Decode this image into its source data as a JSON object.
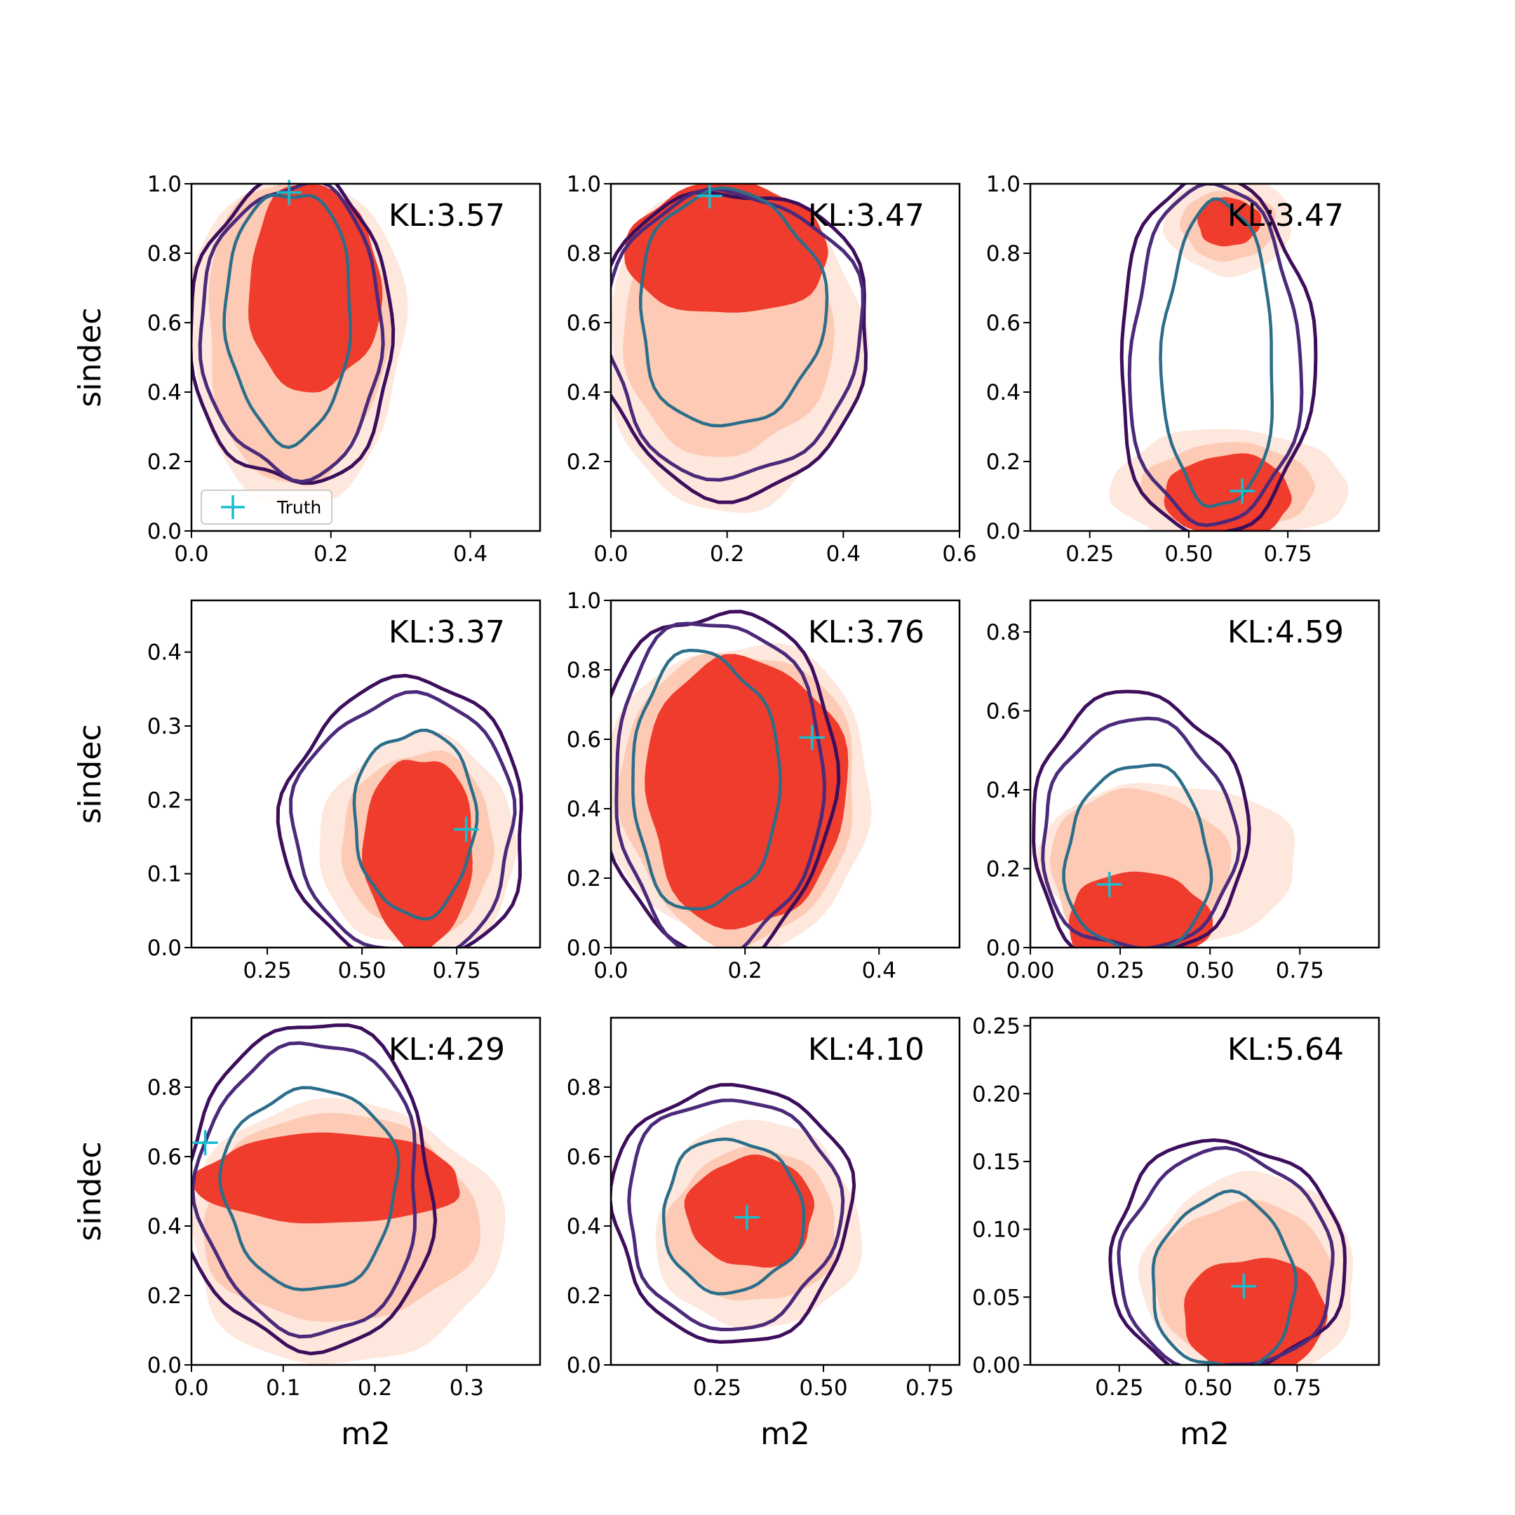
{
  "colors": {
    "fill_levels": [
      "#fee7dc",
      "#fdcab5",
      "#ef3c2d",
      "#d92623"
    ],
    "contour_outer": "#3d0e5c",
    "contour_mid": "#4b2a7a",
    "contour_inner": "#2c6e8a",
    "truth_marker": "#17becf"
  },
  "legend": {
    "label": "Truth",
    "marker": "plus-icon"
  },
  "chart_data": [
    {
      "type": "contour",
      "kl_label": "KL:3.57",
      "xlabel": "",
      "ylabel": "sindec",
      "xlim": [
        0.0,
        0.5
      ],
      "ylim": [
        0.0,
        1.0
      ],
      "xticks": [
        0.0,
        0.2,
        0.4
      ],
      "xtick_labels": [
        "0.0",
        "0.2",
        "0.4"
      ],
      "yticks": [
        0.0,
        0.2,
        0.4,
        0.6,
        0.8,
        1.0
      ],
      "ytick_labels": [
        "0.0",
        "0.2",
        "0.4",
        "0.6",
        "0.8",
        "1.0"
      ],
      "truth": [
        0.14,
        0.975
      ],
      "fills": [
        {
          "level": 0,
          "center": [
            0.15,
            0.56
          ],
          "half": [
            0.155,
            0.48
          ]
        },
        {
          "level": 1,
          "center": [
            0.15,
            0.58
          ],
          "half": [
            0.13,
            0.44
          ]
        },
        {
          "level": 2,
          "center": [
            0.175,
            0.7
          ],
          "half": [
            0.095,
            0.3
          ]
        }
      ],
      "contours": [
        {
          "ring": "outer",
          "center": [
            0.145,
            0.58
          ],
          "half": [
            0.145,
            0.45
          ]
        },
        {
          "ring": "mid",
          "center": [
            0.145,
            0.58
          ],
          "half": [
            0.13,
            0.42
          ]
        },
        {
          "ring": "inner",
          "center": [
            0.14,
            0.625
          ],
          "half": [
            0.09,
            0.36
          ]
        }
      ],
      "show_legend": true
    },
    {
      "type": "contour",
      "kl_label": "KL:3.47",
      "xlabel": "",
      "ylabel": "",
      "xlim": [
        0.0,
        0.6
      ],
      "ylim": [
        0.0,
        1.0
      ],
      "xticks": [
        0.0,
        0.2,
        0.4,
        0.6
      ],
      "xtick_labels": [
        "0.0",
        "0.2",
        "0.4",
        "0.6"
      ],
      "yticks": [
        0.2,
        0.4,
        0.6,
        0.8,
        1.0
      ],
      "ytick_labels": [
        "0.2",
        "0.4",
        "0.6",
        "0.8",
        "1.0"
      ],
      "truth": [
        0.17,
        0.965
      ],
      "fills": [
        {
          "level": 0,
          "center": [
            0.21,
            0.53
          ],
          "half": [
            0.22,
            0.47
          ]
        },
        {
          "level": 1,
          "center": [
            0.2,
            0.6
          ],
          "half": [
            0.18,
            0.39
          ]
        },
        {
          "level": 2,
          "center": [
            0.2,
            0.81
          ],
          "half": [
            0.175,
            0.19
          ]
        }
      ],
      "contours": [
        {
          "ring": "outer",
          "center": [
            0.21,
            0.55
          ],
          "half": [
            0.235,
            0.44
          ]
        },
        {
          "ring": "mid",
          "center": [
            0.21,
            0.57
          ],
          "half": [
            0.22,
            0.41
          ]
        },
        {
          "ring": "inner",
          "center": [
            0.205,
            0.64
          ],
          "half": [
            0.16,
            0.34
          ]
        }
      ],
      "show_legend": false
    },
    {
      "type": "contour",
      "kl_label": "KL:3.47",
      "xlabel": "",
      "ylabel": "",
      "xlim": [
        0.1,
        0.98
      ],
      "ylim": [
        0.0,
        1.0
      ],
      "xticks": [
        0.25,
        0.5,
        0.75
      ],
      "xtick_labels": [
        "0.25",
        "0.50",
        "0.75"
      ],
      "yticks": [
        0.0,
        0.2,
        0.4,
        0.6,
        0.8,
        1.0
      ],
      "ytick_labels": [
        "0.0",
        "0.2",
        "0.4",
        "0.6",
        "0.8",
        "1.0"
      ],
      "truth": [
        0.635,
        0.115
      ],
      "fills": [
        {
          "level": 0,
          "center": [
            0.6,
            0.13
          ],
          "half": [
            0.3,
            0.16
          ]
        },
        {
          "level": 1,
          "center": [
            0.6,
            0.13
          ],
          "half": [
            0.22,
            0.12
          ]
        },
        {
          "level": 2,
          "center": [
            0.6,
            0.1
          ],
          "half": [
            0.16,
            0.12
          ]
        },
        {
          "level": 0,
          "center": [
            0.6,
            0.88
          ],
          "half": [
            0.16,
            0.14
          ]
        },
        {
          "level": 1,
          "center": [
            0.6,
            0.88
          ],
          "half": [
            0.12,
            0.1
          ]
        },
        {
          "level": 2,
          "center": [
            0.6,
            0.89
          ],
          "half": [
            0.08,
            0.07
          ]
        }
      ],
      "contours": [
        {
          "ring": "outer",
          "center": [
            0.565,
            0.5
          ],
          "half": [
            0.245,
            0.52
          ]
        },
        {
          "ring": "mid",
          "center": [
            0.565,
            0.5
          ],
          "half": [
            0.215,
            0.49
          ]
        },
        {
          "ring": "inner",
          "center": [
            0.575,
            0.5
          ],
          "half": [
            0.14,
            0.44
          ]
        }
      ],
      "show_legend": false
    },
    {
      "type": "contour",
      "kl_label": "KL:3.37",
      "xlabel": "",
      "ylabel": "sindec",
      "xlim": [
        0.05,
        0.97
      ],
      "ylim": [
        0.0,
        0.47
      ],
      "xticks": [
        0.25,
        0.5,
        0.75
      ],
      "xtick_labels": [
        "0.25",
        "0.50",
        "0.75"
      ],
      "yticks": [
        0.0,
        0.1,
        0.2,
        0.3,
        0.4
      ],
      "ytick_labels": [
        "0.0",
        "0.1",
        "0.2",
        "0.3",
        "0.4"
      ],
      "truth": [
        0.775,
        0.16
      ],
      "fills": [
        {
          "level": 0,
          "center": [
            0.65,
            0.14
          ],
          "half": [
            0.26,
            0.145
          ]
        },
        {
          "level": 1,
          "center": [
            0.65,
            0.14
          ],
          "half": [
            0.2,
            0.125
          ]
        },
        {
          "level": 2,
          "center": [
            0.65,
            0.13
          ],
          "half": [
            0.145,
            0.13
          ]
        }
      ],
      "contours": [
        {
          "ring": "outer",
          "center": [
            0.615,
            0.17
          ],
          "half": [
            0.32,
            0.19
          ]
        },
        {
          "ring": "mid",
          "center": [
            0.615,
            0.165
          ],
          "half": [
            0.29,
            0.175
          ]
        },
        {
          "ring": "inner",
          "center": [
            0.64,
            0.17
          ],
          "half": [
            0.16,
            0.125
          ]
        }
      ],
      "show_legend": false
    },
    {
      "type": "contour",
      "kl_label": "KL:3.76",
      "xlabel": "",
      "ylabel": "",
      "xlim": [
        0.0,
        0.52
      ],
      "ylim": [
        0.0,
        1.0
      ],
      "xticks": [
        0.0,
        0.2,
        0.4
      ],
      "xtick_labels": [
        "0.0",
        "0.2",
        "0.4"
      ],
      "yticks": [
        0.0,
        0.2,
        0.4,
        0.6,
        0.8,
        1.0
      ],
      "ytick_labels": [
        "0.0",
        "0.2",
        "0.4",
        "0.6",
        "0.8",
        "1.0"
      ],
      "truth": [
        0.3,
        0.605
      ],
      "fills": [
        {
          "level": 0,
          "center": [
            0.19,
            0.44
          ],
          "half": [
            0.2,
            0.44
          ]
        },
        {
          "level": 1,
          "center": [
            0.19,
            0.44
          ],
          "half": [
            0.175,
            0.42
          ]
        },
        {
          "level": 2,
          "center": [
            0.2,
            0.45
          ],
          "half": [
            0.15,
            0.39
          ]
        }
      ],
      "contours": [
        {
          "ring": "outer",
          "center": [
            0.16,
            0.48
          ],
          "half": [
            0.175,
            0.5
          ]
        },
        {
          "ring": "mid",
          "center": [
            0.16,
            0.47
          ],
          "half": [
            0.155,
            0.48
          ]
        },
        {
          "ring": "inner",
          "center": [
            0.14,
            0.48
          ],
          "half": [
            0.11,
            0.37
          ]
        }
      ],
      "show_legend": false
    },
    {
      "type": "contour",
      "kl_label": "KL:4.59",
      "xlabel": "",
      "ylabel": "",
      "xlim": [
        0.0,
        0.97
      ],
      "ylim": [
        0.0,
        0.88
      ],
      "xticks": [
        0.0,
        0.25,
        0.5,
        0.75
      ],
      "xtick_labels": [
        "0.00",
        "0.25",
        "0.50",
        "0.75"
      ],
      "yticks": [
        0.0,
        0.2,
        0.4,
        0.6,
        0.8
      ],
      "ytick_labels": [
        "0.0",
        "0.2",
        "0.4",
        "0.6",
        "0.8"
      ],
      "truth": [
        0.22,
        0.16
      ],
      "fills": [
        {
          "level": 0,
          "center": [
            0.38,
            0.21
          ],
          "half": [
            0.36,
            0.21
          ]
        },
        {
          "level": 1,
          "center": [
            0.3,
            0.2
          ],
          "half": [
            0.25,
            0.2
          ]
        },
        {
          "level": 2,
          "center": [
            0.3,
            0.07
          ],
          "half": [
            0.2,
            0.12
          ]
        }
      ],
      "contours": [
        {
          "ring": "outer",
          "center": [
            0.3,
            0.3
          ],
          "half": [
            0.3,
            0.34
          ]
        },
        {
          "ring": "mid",
          "center": [
            0.3,
            0.28
          ],
          "half": [
            0.27,
            0.29
          ]
        },
        {
          "ring": "inner",
          "center": [
            0.3,
            0.22
          ],
          "half": [
            0.2,
            0.24
          ]
        }
      ],
      "show_legend": false
    },
    {
      "type": "contour",
      "kl_label": "KL:4.29",
      "xlabel": "m2",
      "ylabel": "sindec",
      "xlim": [
        0.0,
        0.38
      ],
      "ylim": [
        0.0,
        1.0
      ],
      "xticks": [
        0.0,
        0.1,
        0.2,
        0.3
      ],
      "xtick_labels": [
        "0.0",
        "0.1",
        "0.2",
        "0.3"
      ],
      "yticks": [
        0.0,
        0.2,
        0.4,
        0.6,
        0.8
      ],
      "ytick_labels": [
        "0.0",
        "0.2",
        "0.4",
        "0.6",
        "0.8"
      ],
      "truth": [
        0.015,
        0.64
      ],
      "fills": [
        {
          "level": 0,
          "center": [
            0.165,
            0.38
          ],
          "half": [
            0.17,
            0.38
          ]
        },
        {
          "level": 1,
          "center": [
            0.16,
            0.42
          ],
          "half": [
            0.15,
            0.3
          ]
        },
        {
          "level": 2,
          "center": [
            0.15,
            0.535
          ],
          "half": [
            0.145,
            0.13
          ]
        }
      ],
      "contours": [
        {
          "ring": "outer",
          "center": [
            0.13,
            0.51
          ],
          "half": [
            0.135,
            0.47
          ]
        },
        {
          "ring": "mid",
          "center": [
            0.13,
            0.51
          ],
          "half": [
            0.12,
            0.42
          ]
        },
        {
          "ring": "inner",
          "center": [
            0.13,
            0.51
          ],
          "half": [
            0.095,
            0.29
          ]
        }
      ],
      "show_legend": false
    },
    {
      "type": "contour",
      "kl_label": "KL:4.10",
      "xlabel": "m2",
      "ylabel": "",
      "xlim": [
        0.0,
        0.82
      ],
      "ylim": [
        0.0,
        1.0
      ],
      "xticks": [
        0.25,
        0.5,
        0.75
      ],
      "xtick_labels": [
        "0.25",
        "0.50",
        "0.75"
      ],
      "yticks": [
        0.0,
        0.2,
        0.4,
        0.6,
        0.8
      ],
      "ytick_labels": [
        "0.0",
        "0.2",
        "0.4",
        "0.6",
        "0.8"
      ],
      "truth": [
        0.32,
        0.425
      ],
      "fills": [
        {
          "level": 0,
          "center": [
            0.345,
            0.4
          ],
          "half": [
            0.24,
            0.3
          ]
        },
        {
          "level": 1,
          "center": [
            0.335,
            0.4
          ],
          "half": [
            0.2,
            0.22
          ]
        },
        {
          "level": 2,
          "center": [
            0.33,
            0.44
          ],
          "half": [
            0.15,
            0.16
          ]
        }
      ],
      "contours": [
        {
          "ring": "outer",
          "center": [
            0.285,
            0.44
          ],
          "half": [
            0.28,
            0.37
          ]
        },
        {
          "ring": "mid",
          "center": [
            0.285,
            0.44
          ],
          "half": [
            0.25,
            0.33
          ]
        },
        {
          "ring": "inner",
          "center": [
            0.285,
            0.43
          ],
          "half": [
            0.165,
            0.22
          ]
        }
      ],
      "show_legend": false
    },
    {
      "type": "contour",
      "kl_label": "KL:5.64",
      "xlabel": "m2",
      "ylabel": "",
      "xlim": [
        0.0,
        0.98
      ],
      "ylim": [
        0.0,
        0.256
      ],
      "xticks": [
        0.25,
        0.5,
        0.75
      ],
      "xtick_labels": [
        "0.25",
        "0.50",
        "0.75"
      ],
      "yticks": [
        0.0,
        0.05,
        0.1,
        0.15,
        0.2,
        0.25
      ],
      "ytick_labels": [
        "0.00",
        "0.05",
        "0.10",
        "0.15",
        "0.20",
        "0.25"
      ],
      "truth": [
        0.6,
        0.058
      ],
      "fills": [
        {
          "level": 0,
          "center": [
            0.62,
            0.065
          ],
          "half": [
            0.3,
            0.075
          ]
        },
        {
          "level": 1,
          "center": [
            0.6,
            0.06
          ],
          "half": [
            0.25,
            0.06
          ]
        },
        {
          "level": 2,
          "center": [
            0.63,
            0.035
          ],
          "half": [
            0.2,
            0.045
          ]
        }
      ],
      "contours": [
        {
          "ring": "outer",
          "center": [
            0.55,
            0.078
          ],
          "half": [
            0.33,
            0.086
          ]
        },
        {
          "ring": "mid",
          "center": [
            0.55,
            0.075
          ],
          "half": [
            0.3,
            0.08
          ]
        },
        {
          "ring": "inner",
          "center": [
            0.545,
            0.06
          ],
          "half": [
            0.2,
            0.064
          ]
        }
      ],
      "show_legend": false
    }
  ]
}
